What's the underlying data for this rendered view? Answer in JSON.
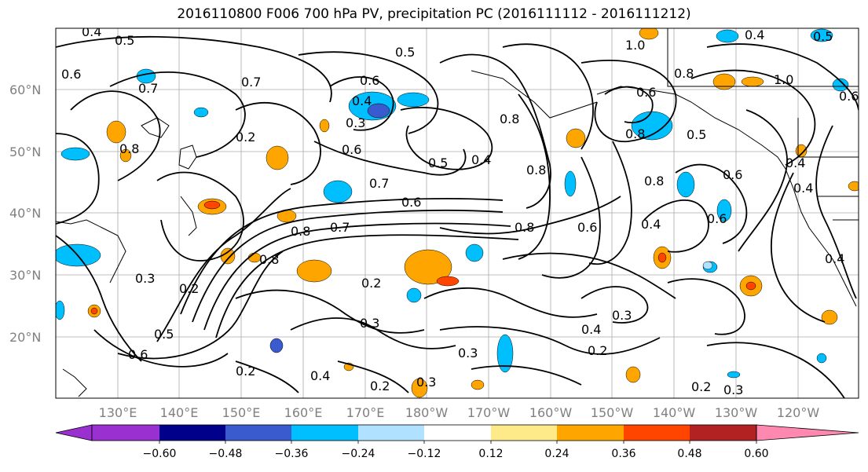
{
  "title": "2016110800 F006 700 hPa PV, precipitation PC (2016111112 - 2016111212)",
  "lat_labels": [
    "60°N",
    "50°N",
    "40°N",
    "30°N",
    "20°N"
  ],
  "lon_labels": [
    "130°E",
    "140°E",
    "150°E",
    "160°E",
    "170°E",
    "180°W",
    "170°W",
    "160°W",
    "150°W",
    "140°W",
    "130°W",
    "120°W"
  ],
  "contour_labels": [
    "0.4",
    "0.5",
    "0.5",
    "0.6",
    "0.7",
    "0.7",
    "0.4",
    "0.3",
    "0.6",
    "0.8",
    "0.5",
    "0.4",
    "0.8",
    "0.8",
    "0.6",
    "0.7",
    "0.8",
    "0.7",
    "0.8",
    "0.6",
    "0.8",
    "0.4",
    "0.6",
    "0.8",
    "0.3",
    "0.2",
    "0.2",
    "0.3",
    "0.5",
    "0.6",
    "0.2",
    "0.4",
    "0.2",
    "0.3",
    "0.3",
    "0.2",
    "0.4",
    "0.3",
    "0.2",
    "0.3",
    "1.0",
    "1.0",
    "0.8",
    "0.8",
    "0.5",
    "0.6",
    "0.4",
    "0.6",
    "0.4",
    "0.5",
    "0.6",
    "0.2",
    "0.6",
    "0.4",
    "0.4"
  ],
  "colorbar": {
    "ticks": [
      "−0.60",
      "−0.48",
      "−0.36",
      "−0.24",
      "−0.12",
      "0.12",
      "0.24",
      "0.36",
      "0.48",
      "0.60"
    ],
    "colors": [
      "#9b30d0",
      "#00008b",
      "#3a5bcd",
      "#00bfff",
      "#b0e2ff",
      "#ffffff",
      "#ffea8a",
      "#ffa500",
      "#ff4500",
      "#b22222",
      "#ff88b0"
    ]
  }
}
